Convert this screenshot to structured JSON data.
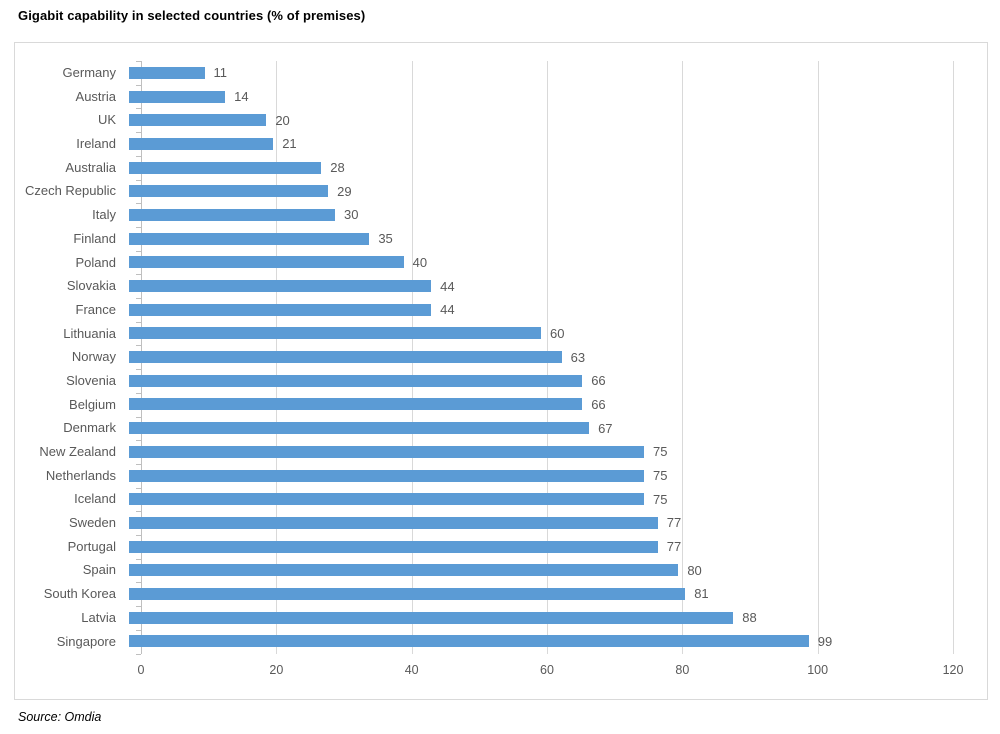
{
  "title": "Gigabit capability in selected countries (% of premises)",
  "source": "Source: Omdia",
  "chart_data": {
    "type": "bar",
    "orientation": "horizontal",
    "title": "Gigabit capability in selected countries (% of premises)",
    "xlabel": "",
    "ylabel": "",
    "categories": [
      "Germany",
      "Austria",
      "UK",
      "Ireland",
      "Australia",
      "Czech Republic",
      "Italy",
      "Finland",
      "Poland",
      "Slovakia",
      "France",
      "Lithuania",
      "Norway",
      "Slovenia",
      "Belgium",
      "Denmark",
      "New Zealand",
      "Netherlands",
      "Iceland",
      "Sweden",
      "Portugal",
      "Spain",
      "South Korea",
      "Latvia",
      "Singapore"
    ],
    "values": [
      11,
      14,
      20,
      21,
      28,
      29,
      30,
      35,
      40,
      44,
      44,
      60,
      63,
      66,
      66,
      67,
      75,
      75,
      75,
      77,
      77,
      80,
      81,
      88,
      99
    ],
    "xlim": [
      0,
      120
    ],
    "xticks": [
      0,
      20,
      40,
      60,
      80,
      100,
      120
    ],
    "grid": true,
    "legend": false,
    "data_labels": true,
    "colors": {
      "bar": "#5b9bd5",
      "gridline": "#d9d9d9",
      "axis_line": "#bfbfbf",
      "text": "#595959"
    }
  }
}
